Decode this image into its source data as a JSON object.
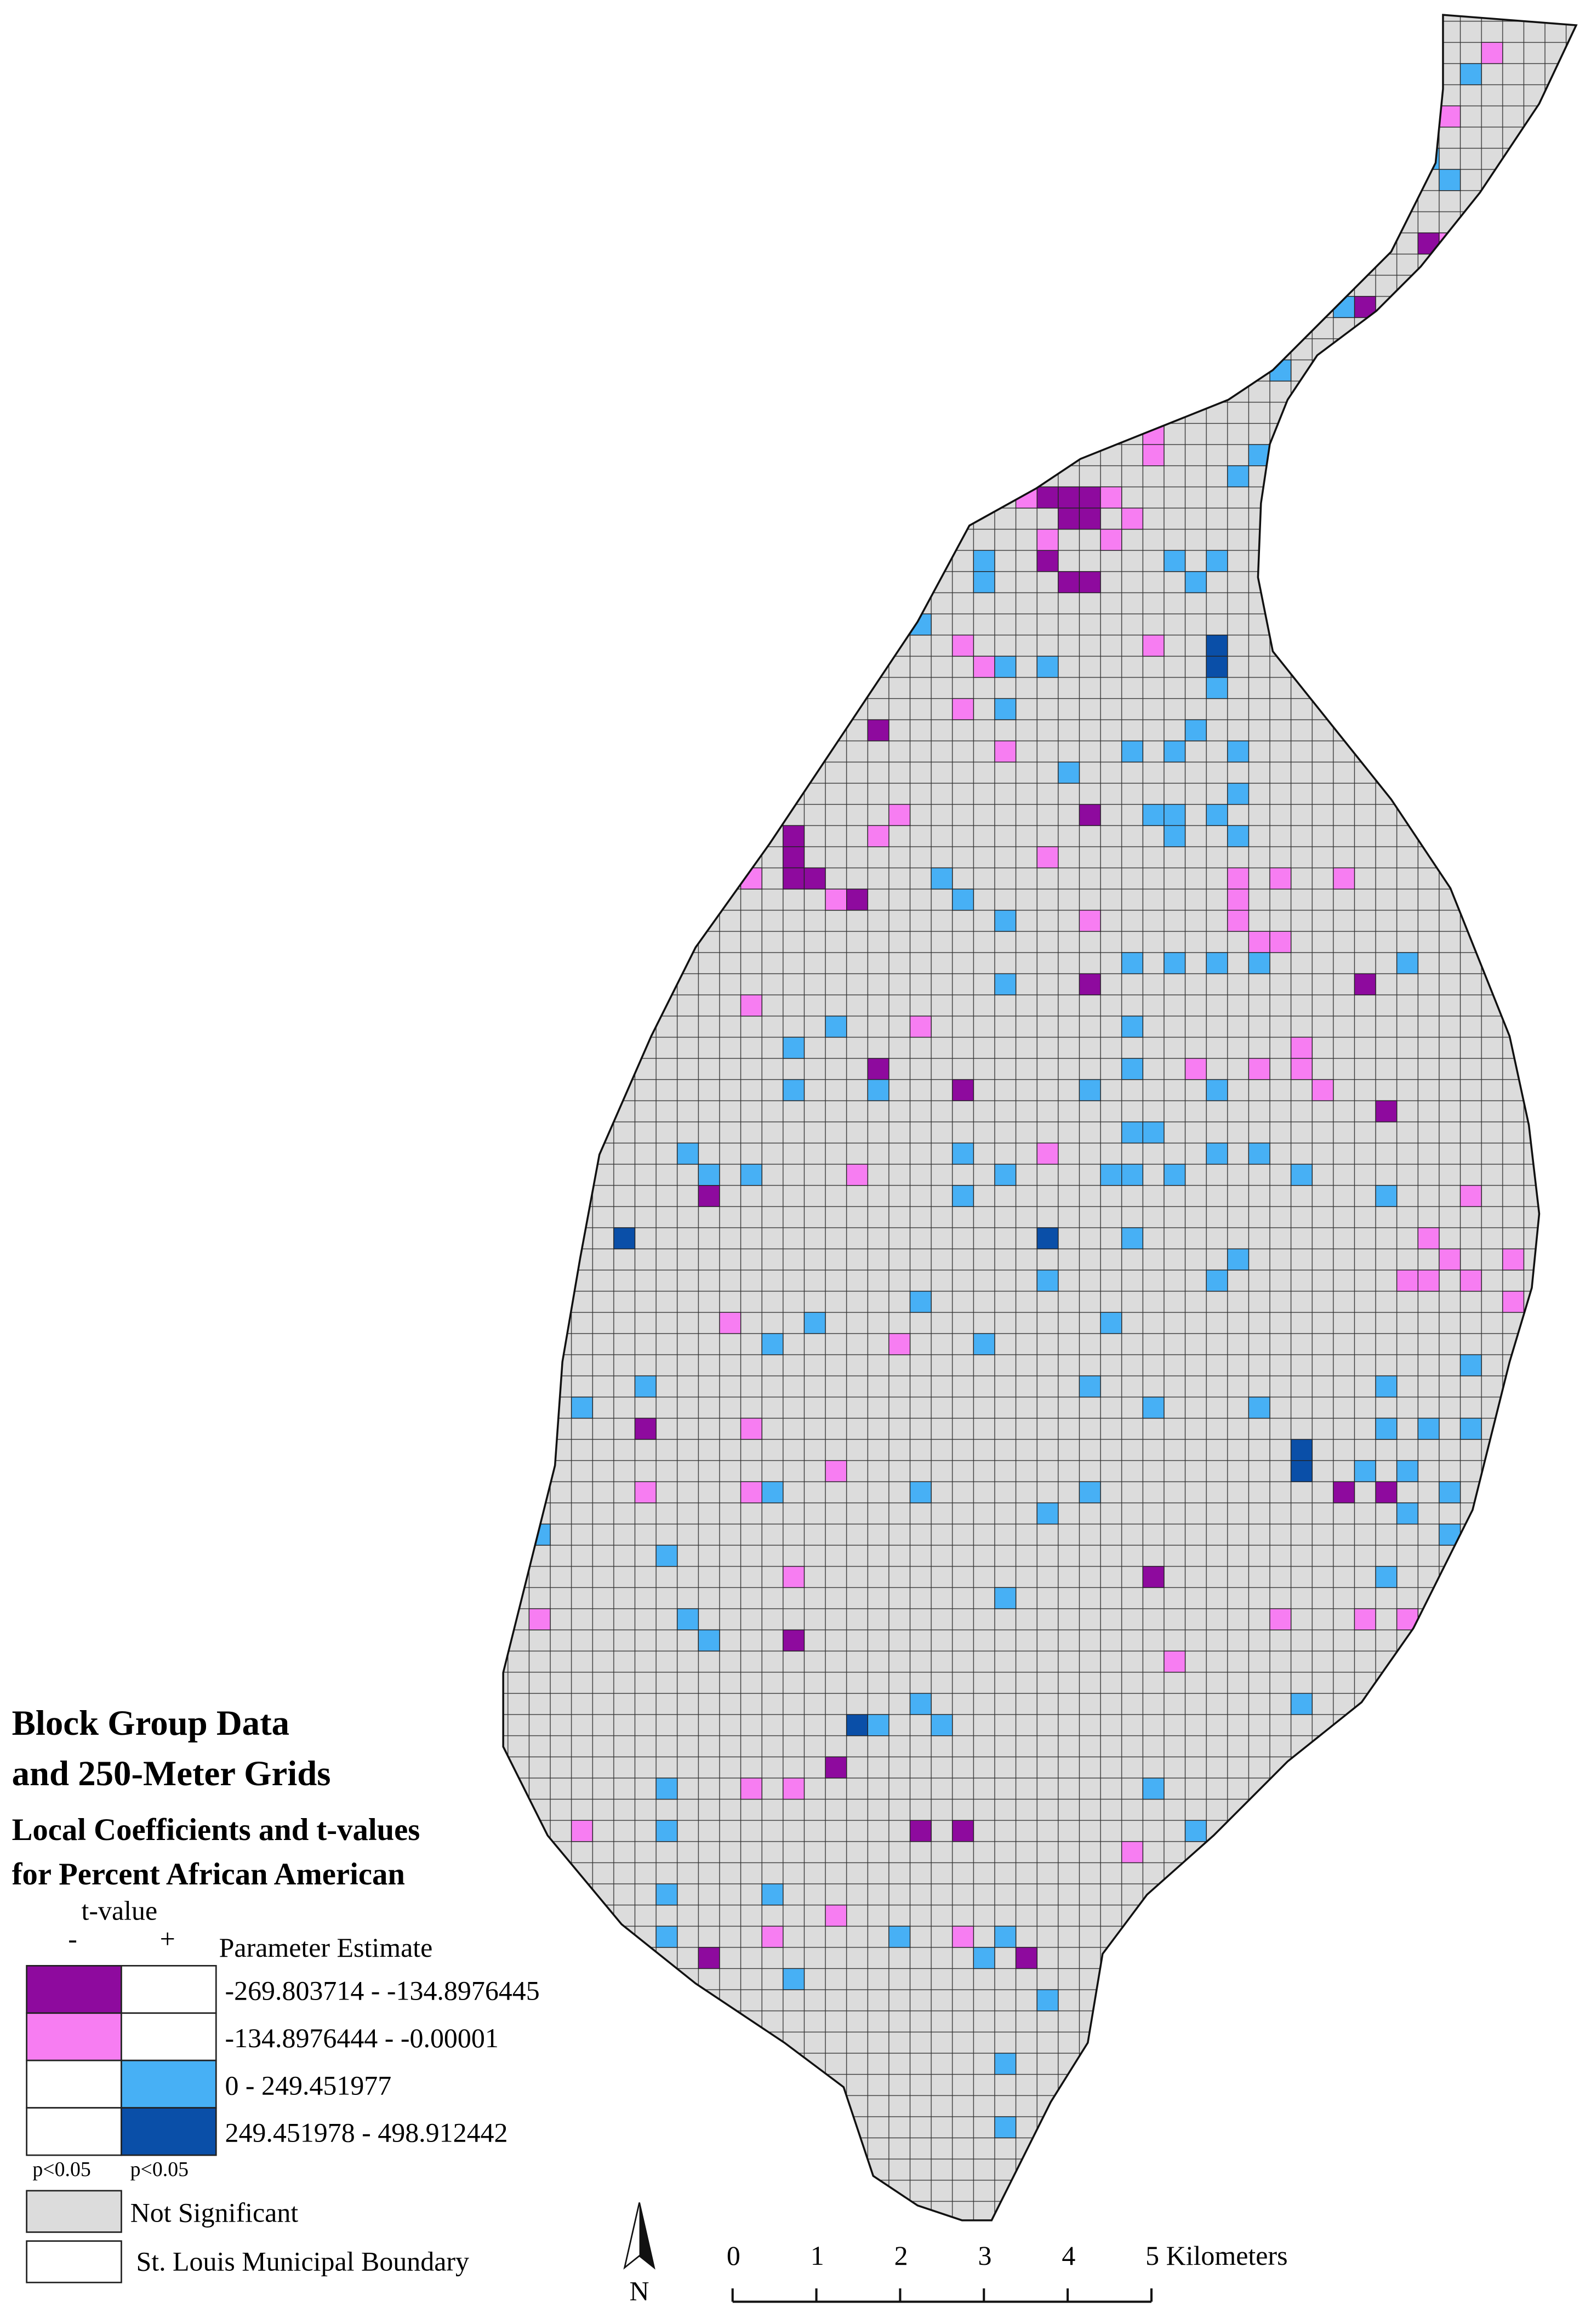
{
  "title": [
    "Block Group Data",
    "and 250-Meter Grids"
  ],
  "subtitle": [
    "Local Coefficients and t-values",
    "for Percent African American"
  ],
  "legend": {
    "t_value_label": "t-value",
    "minus": "-",
    "plus": "+",
    "header": "Parameter Estimate",
    "classes": [
      "-269.803714 - -134.8976445",
      "-134.8976444 - -0.00001",
      "0 - 249.451977",
      "249.451978 - 498.912442"
    ],
    "significance": [
      "p<0.05",
      "p<0.05"
    ],
    "not_significant": "Not Significant",
    "boundary": "St. Louis Municipal Boundary"
  },
  "north": "N",
  "scale_bar": [
    "0",
    "1",
    "2",
    "3",
    "4",
    "5 Kilometers"
  ]
}
